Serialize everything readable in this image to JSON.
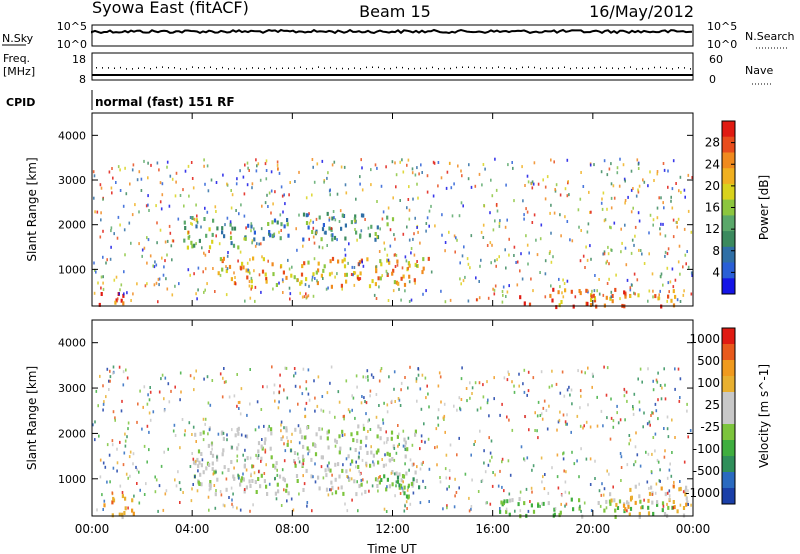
{
  "header": {
    "station": "Syowa East (fitACF)",
    "beam": "Beam 15",
    "date": "16/May/2012"
  },
  "status_panel": {
    "nsky_label": "N.Sky",
    "nsearch_label": "N.Search",
    "nsky_ticks": [
      "10^5",
      "10^0"
    ],
    "nsearch_ticks": [
      "10^5",
      "10^0"
    ],
    "freq_label": "Freq.",
    "freq_unit": "[MHz]",
    "freq_ticks": [
      "18",
      "8"
    ],
    "nave_label": "Nave",
    "nave_ticks": [
      "60",
      "0"
    ],
    "cpid_label": "CPID",
    "cpid_value": "normal (fast) 151 RF"
  },
  "chart_data": [
    {
      "type": "heatmap",
      "panel": "power",
      "ylabel": "Slant Range [km]",
      "xlabel": "",
      "xlim": [
        0,
        24
      ],
      "ylim": [
        180,
        4500
      ],
      "x_ticks": [
        "00:00",
        "04:00",
        "08:00",
        "12:00",
        "16:00",
        "20:00",
        "00:00"
      ],
      "y_ticks": [
        1000,
        2000,
        3000,
        4000
      ],
      "colorbar": {
        "label": "Power [dB]",
        "range": [
          0,
          32
        ],
        "ticks": [
          4,
          8,
          12,
          16,
          20,
          24,
          28
        ],
        "colors": [
          "#1515e6",
          "#2a5fd6",
          "#2f6fa6",
          "#3b8a5e",
          "#5aa86a",
          "#8cc63f",
          "#d9d21c",
          "#f0b020",
          "#f08a1e",
          "#e84d1c",
          "#e01b12"
        ]
      },
      "features": [
        {
          "t0": 0.2,
          "t1": 1.6,
          "r0": 200,
          "r1": 500,
          "level": 28
        },
        {
          "t0": 3.6,
          "t1": 6.0,
          "r0": 1500,
          "r1": 2200,
          "level": 14
        },
        {
          "t0": 5.0,
          "t1": 13.5,
          "r0": 650,
          "r1": 1300,
          "level": 22
        },
        {
          "t0": 6.0,
          "t1": 12.0,
          "r0": 1700,
          "r1": 2300,
          "level": 10
        },
        {
          "t0": 17.0,
          "t1": 23.6,
          "r0": 200,
          "r1": 600,
          "level": 26
        }
      ]
    },
    {
      "type": "heatmap",
      "panel": "velocity",
      "ylabel": "Slant Range [km]",
      "xlabel": "Time UT",
      "xlim": [
        0,
        24
      ],
      "ylim": [
        180,
        4500
      ],
      "x_ticks": [
        "00:00",
        "04:00",
        "08:00",
        "12:00",
        "16:00",
        "20:00",
        "00:00"
      ],
      "y_ticks": [
        1000,
        2000,
        3000,
        4000
      ],
      "colorbar": {
        "label": "Velocity [m s^-1]",
        "tick_labels": [
          "1000",
          "500",
          "100",
          "25",
          "-25",
          "-100",
          "-500",
          "-1000"
        ],
        "colors": [
          "#1a3fa8",
          "#2a6ac0",
          "#2f8f5a",
          "#3fae3f",
          "#7cc43c",
          "#c8c8c8",
          "#c8c8c8",
          "#e8b030",
          "#f09a1e",
          "#e85a1c",
          "#e01b12"
        ]
      },
      "features": [
        {
          "t0": 0.2,
          "t1": 1.8,
          "r0": 200,
          "r1": 700,
          "v": -300
        },
        {
          "t0": 4.0,
          "t1": 13.0,
          "r0": 700,
          "r1": 2200,
          "v": 0
        },
        {
          "t0": 11.5,
          "t1": 13.3,
          "r0": 600,
          "r1": 1100,
          "v": 200
        },
        {
          "t0": 16.0,
          "t1": 23.5,
          "r0": 200,
          "r1": 600,
          "v": 150
        },
        {
          "t0": 20.5,
          "t1": 23.8,
          "r0": 200,
          "r1": 900,
          "v": -200
        }
      ]
    }
  ]
}
